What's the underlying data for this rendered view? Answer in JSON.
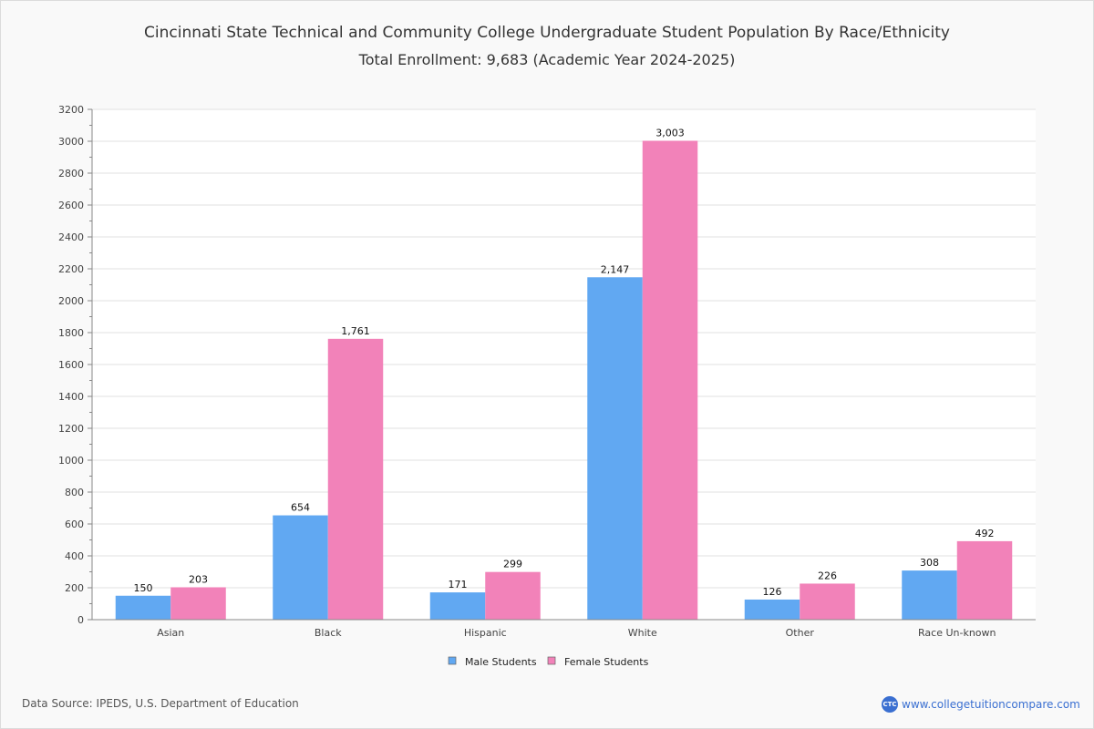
{
  "chart_data": {
    "type": "bar",
    "title": "Cincinnati State Technical and Community College Undergraduate Student Population By Race/Ethnicity",
    "subtitle": "Total Enrollment: 9,683 (Academic Year 2024-2025)",
    "xlabel": "",
    "ylabel": "",
    "ylim": [
      0,
      3200
    ],
    "yticks": [
      0,
      200,
      400,
      600,
      800,
      1000,
      1200,
      1400,
      1600,
      1800,
      2000,
      2200,
      2400,
      2600,
      2800,
      3000,
      3200
    ],
    "grid": true,
    "legend_position": "bottom-center",
    "categories": [
      "Asian",
      "Black",
      "Hispanic",
      "White",
      "Other",
      "Race Un-known"
    ],
    "series": [
      {
        "name": "Male Students",
        "color": "#61a8f2",
        "values": [
          150,
          654,
          171,
          2147,
          126,
          308
        ],
        "labels": [
          "150",
          "654",
          "171",
          "2,147",
          "126",
          "308"
        ]
      },
      {
        "name": "Female Students",
        "color": "#f282b9",
        "values": [
          203,
          1761,
          299,
          3003,
          226,
          492
        ],
        "labels": [
          "203",
          "1,761",
          "299",
          "3,003",
          "226",
          "492"
        ]
      }
    ]
  },
  "footer": {
    "source": "Data Source: IPEDS, U.S. Department of Education",
    "brand_logo": "CTC",
    "brand_url": "www.collegetuitioncompare.com"
  }
}
